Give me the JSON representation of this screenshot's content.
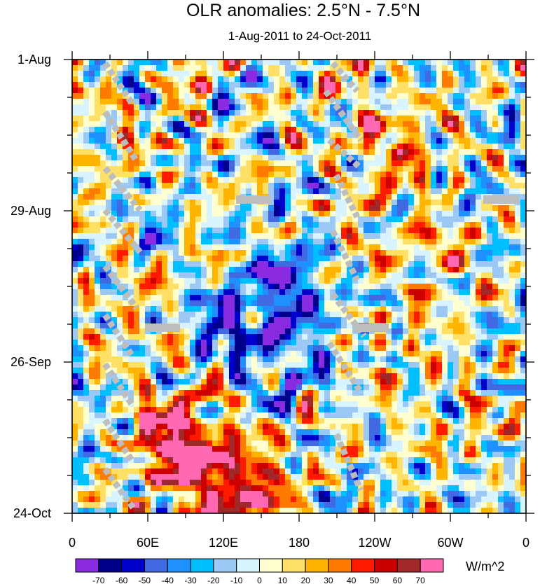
{
  "chart_data": {
    "type": "heatmap",
    "title": "OLR anomalies: 2.5°N - 7.5°N",
    "subtitle": "1-Aug-2011 to 24-Oct-2011",
    "xlabel": "",
    "ylabel": "",
    "x_ticks": [
      {
        "label": "0",
        "lon": 0
      },
      {
        "label": "60E",
        "lon": 60
      },
      {
        "label": "120E",
        "lon": 120
      },
      {
        "label": "180",
        "lon": 180
      },
      {
        "label": "120W",
        "lon": 240
      },
      {
        "label": "60W",
        "lon": 300
      },
      {
        "label": "0",
        "lon": 360
      }
    ],
    "xlim": [
      0,
      360
    ],
    "y_ticks": [
      {
        "label": "1-Aug",
        "day": 0
      },
      {
        "label": "29-Aug",
        "day": 28
      },
      {
        "label": "26-Sep",
        "day": 56
      },
      {
        "label": "24-Oct",
        "day": 84
      }
    ],
    "ylim": [
      0,
      84
    ],
    "colorbar": {
      "unit": "W/m^2",
      "levels": [
        -70,
        -60,
        -50,
        -40,
        -30,
        -20,
        -10,
        0,
        10,
        20,
        30,
        40,
        50,
        60,
        70
      ],
      "colors": [
        "#8a2be2",
        "#00008b",
        "#0000cd",
        "#4169e1",
        "#1e90ff",
        "#00bfff",
        "#9bc8f5",
        "#d8f5ff",
        "#ffffd0",
        "#ffe066",
        "#ffb400",
        "#ff7a00",
        "#ff1a00",
        "#cc0000",
        "#a02828",
        "#ff69b4"
      ]
    },
    "missing_color": "#bdbdbd"
  }
}
